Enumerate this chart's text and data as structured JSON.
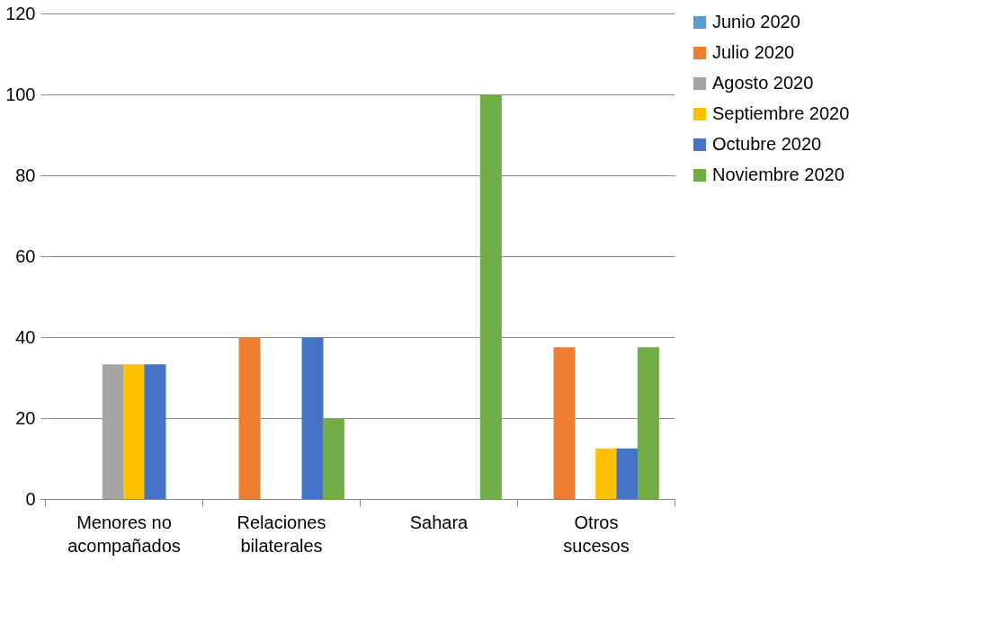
{
  "chart_data": {
    "type": "bar",
    "categories": [
      "Menores no acompañados",
      "Relaciones bilaterales",
      "Sahara",
      "Otros sucesos"
    ],
    "series": [
      {
        "name": "Junio 2020",
        "color": "#5b9bd5",
        "values": [
          0,
          0,
          0,
          0
        ]
      },
      {
        "name": "Julio 2020",
        "color": "#ed7d31",
        "values": [
          0,
          40,
          0,
          37.5
        ]
      },
      {
        "name": "Agosto 2020",
        "color": "#a5a5a5",
        "values": [
          33.3,
          0,
          0,
          0
        ]
      },
      {
        "name": "Septiembre 2020",
        "color": "#ffc000",
        "values": [
          33.3,
          0,
          0,
          12.5
        ]
      },
      {
        "name": "Octubre 2020",
        "color": "#4472c4",
        "values": [
          33.3,
          40,
          0,
          12.5
        ]
      },
      {
        "name": "Noviembre 2020",
        "color": "#70ad47",
        "values": [
          0,
          20,
          100,
          37.5
        ]
      }
    ],
    "ylim": [
      0,
      120
    ],
    "yticks": [
      0,
      20,
      40,
      60,
      80,
      100,
      120
    ],
    "grid": "y",
    "legend": "right"
  }
}
